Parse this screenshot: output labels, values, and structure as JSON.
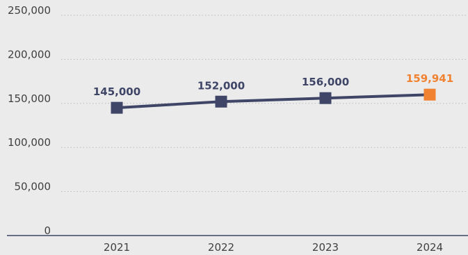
{
  "colors": {
    "background": "#ebebeb",
    "series": "#3e4566",
    "highlight": "#f08232",
    "grid": "#b9b9b9",
    "axis_text": "#3f3f3f",
    "baseline": "#3e4566"
  },
  "chart_data": {
    "type": "line",
    "x": [
      "2021",
      "2022",
      "2023",
      "2024"
    ],
    "values": [
      145000,
      152000,
      156000,
      159941
    ],
    "value_labels": [
      "145,000",
      "152,000",
      "156,000",
      "159,941"
    ],
    "highlight_index": 3,
    "y_ticks": [
      0,
      50000,
      100000,
      150000,
      200000,
      250000
    ],
    "y_tick_labels": [
      "0",
      "50,000",
      "100,000",
      "150,000",
      "200,000",
      "250,000"
    ],
    "ylim": [
      0,
      250000
    ],
    "grid": true,
    "marker": "square",
    "legend": "none"
  }
}
